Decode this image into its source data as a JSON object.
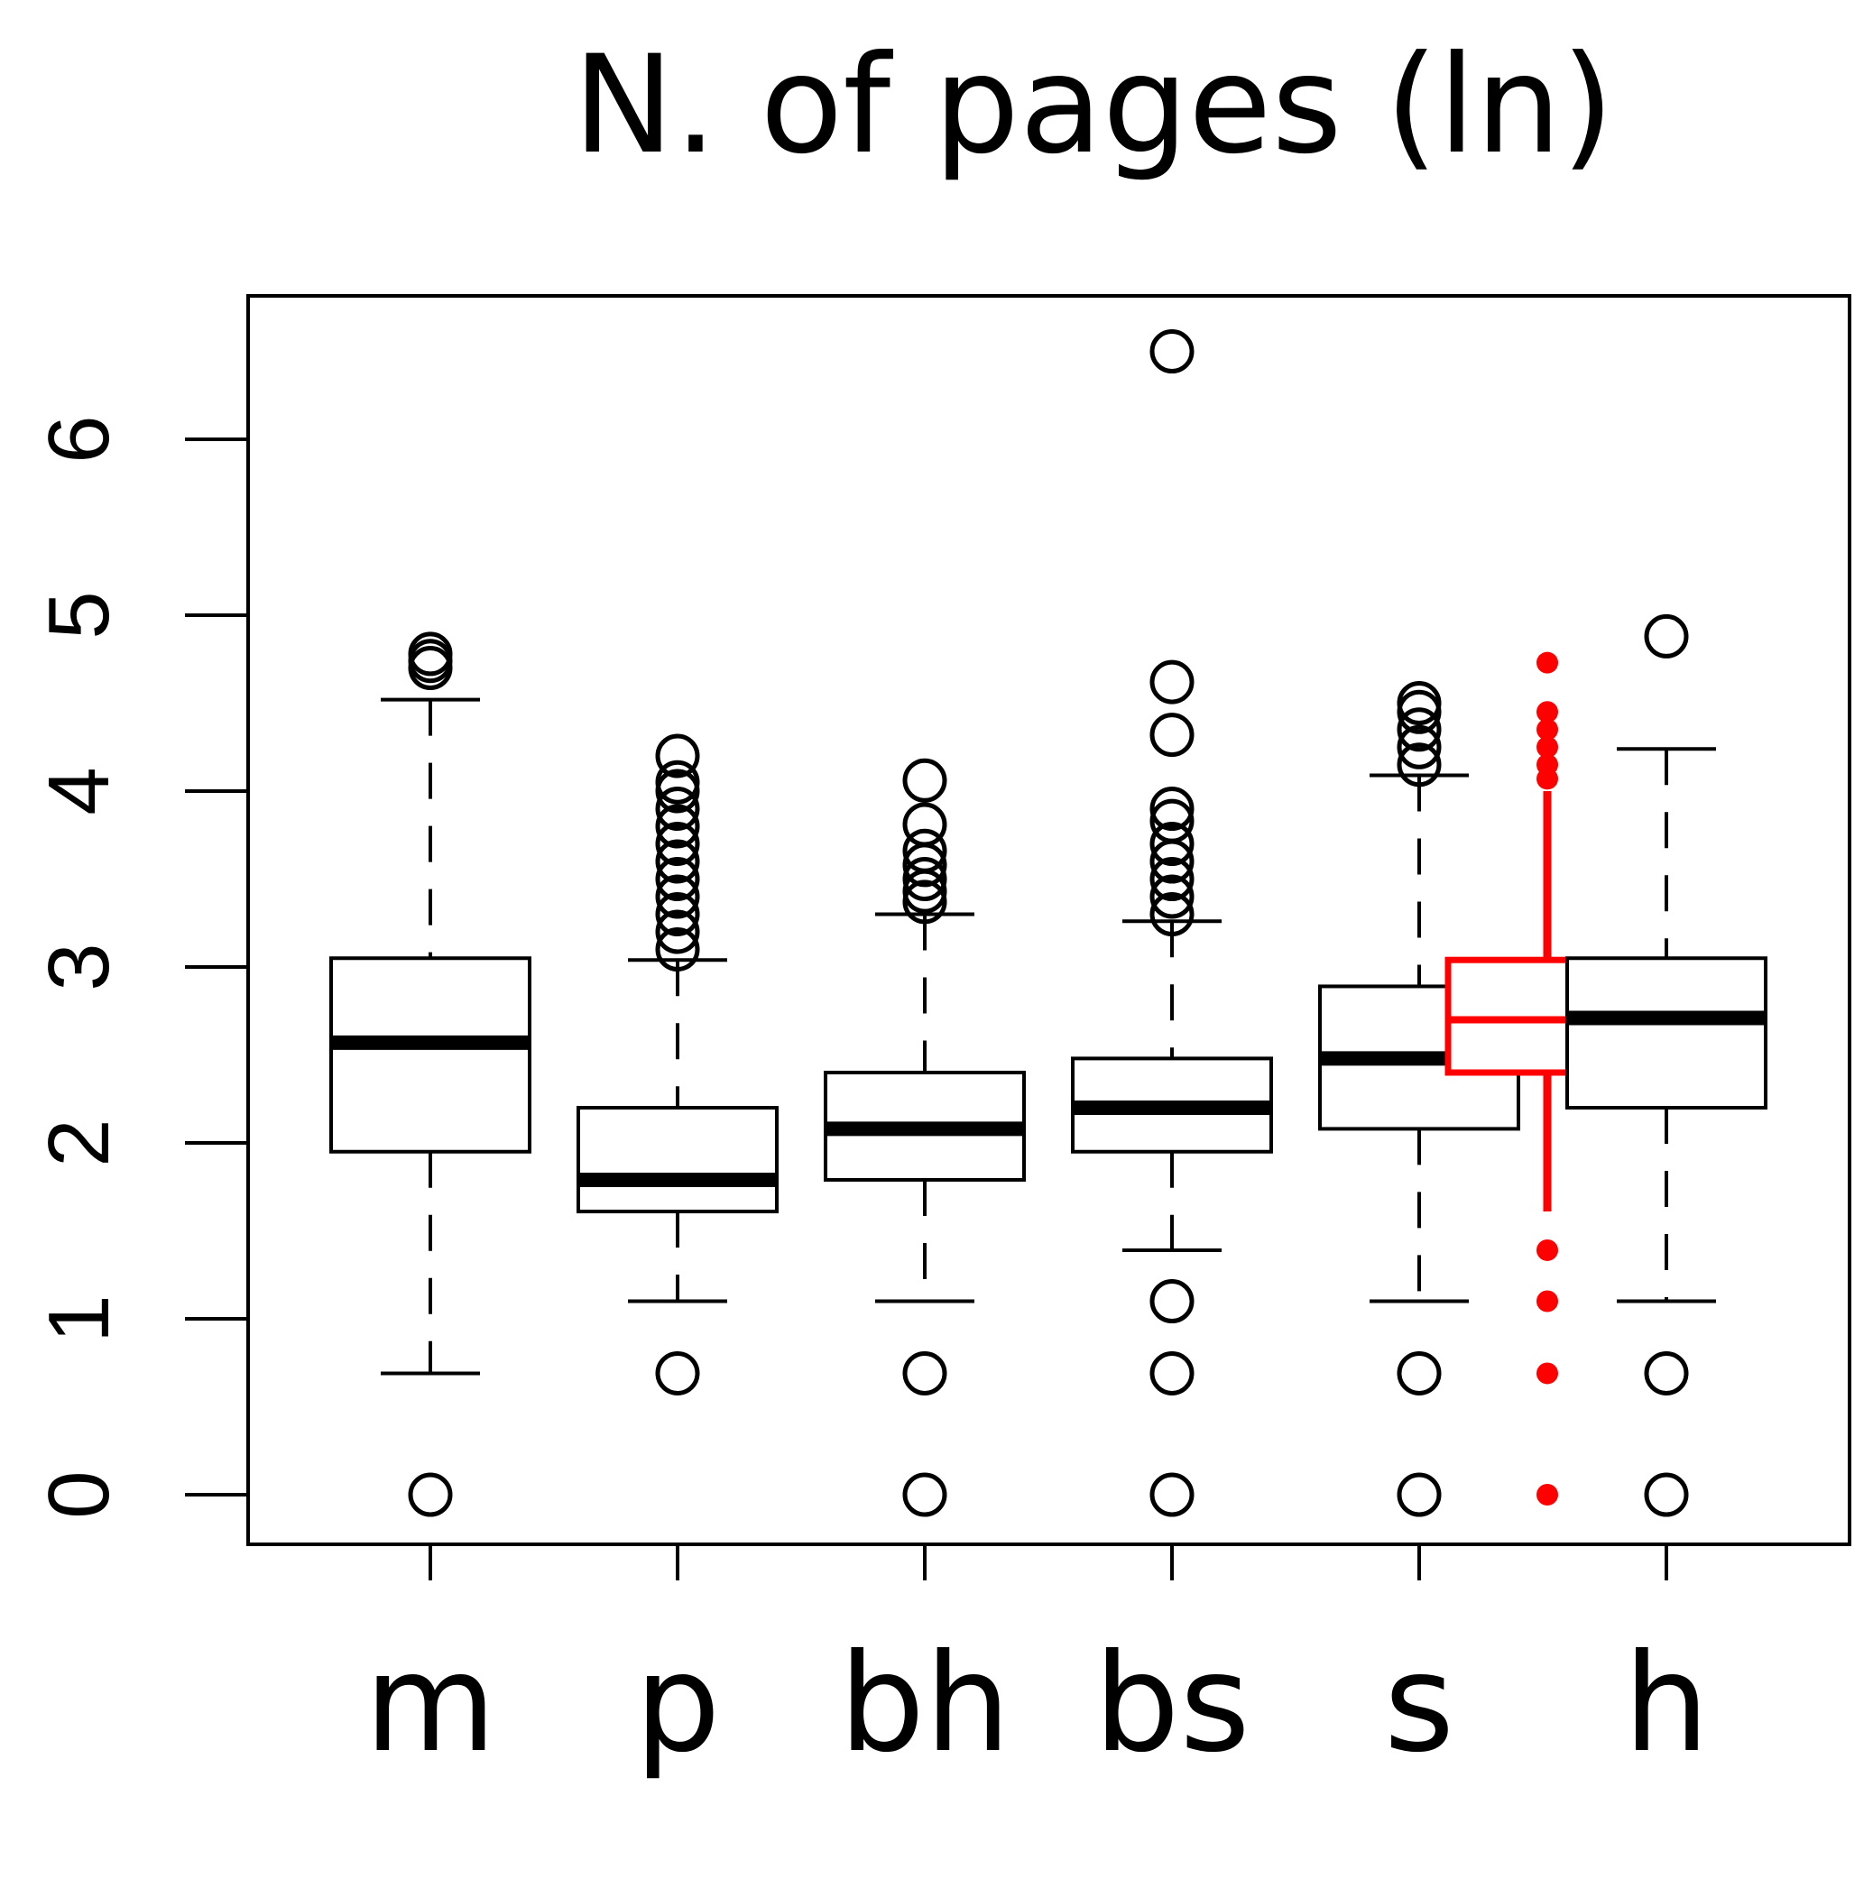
{
  "chart_data": {
    "type": "boxplot",
    "title": "N. of pages (ln)",
    "xlabel": "",
    "ylabel": "",
    "ylim": [
      -0.25,
      6.85
    ],
    "yticks": [
      0,
      1,
      2,
      3,
      4,
      5,
      6
    ],
    "grid": false,
    "legend": "none",
    "colors": {
      "default": "#000000",
      "highlight": "#ff0000"
    },
    "categories": [
      "m",
      "p",
      "bh",
      "bs",
      "s",
      "",
      "h"
    ],
    "boxes": [
      {
        "label": "m",
        "lower_whisker": 0.69,
        "q1": 1.95,
        "median": 2.57,
        "q3": 3.05,
        "upper_whisker": 4.52,
        "outliers": [
          0,
          4.7,
          4.74,
          4.78
        ]
      },
      {
        "label": "p",
        "lower_whisker": 1.1,
        "q1": 1.61,
        "median": 1.79,
        "q3": 2.2,
        "upper_whisker": 3.04,
        "outliers": [
          0.69,
          3.1,
          3.2,
          3.3,
          3.4,
          3.5,
          3.6,
          3.7,
          3.8,
          3.9,
          4.0,
          4.05,
          4.2
        ]
      },
      {
        "label": "bh",
        "lower_whisker": 1.1,
        "q1": 1.79,
        "median": 2.08,
        "q3": 2.4,
        "upper_whisker": 3.3,
        "outliers": [
          0,
          0.69,
          3.37,
          3.43,
          3.5,
          3.58,
          3.66,
          3.81,
          4.06
        ]
      },
      {
        "label": "bs",
        "lower_whisker": 1.39,
        "q1": 1.95,
        "median": 2.2,
        "q3": 2.48,
        "upper_whisker": 3.26,
        "outliers": [
          0,
          0.69,
          1.1,
          3.3,
          3.4,
          3.5,
          3.6,
          3.7,
          3.83,
          3.9,
          4.32,
          4.62,
          6.5
        ]
      },
      {
        "label": "s",
        "lower_whisker": 1.1,
        "q1": 2.08,
        "median": 2.48,
        "q3": 2.89,
        "upper_whisker": 4.09,
        "outliers": [
          0,
          0.69,
          4.15,
          4.25,
          4.35,
          4.45,
          4.5
        ]
      },
      {
        "label": "",
        "highlight": true,
        "lower_whisker": 1.61,
        "q1": 2.4,
        "median": 2.7,
        "q3": 3.04,
        "upper_whisker": 4.0,
        "outliers": [
          0,
          0.69,
          1.1,
          1.39,
          4.07,
          4.15,
          4.25,
          4.35,
          4.45,
          4.73
        ]
      },
      {
        "label": "h",
        "lower_whisker": 1.1,
        "q1": 2.2,
        "median": 2.71,
        "q3": 3.05,
        "upper_whisker": 4.24,
        "outliers": [
          0,
          0.69,
          4.88
        ]
      }
    ]
  }
}
